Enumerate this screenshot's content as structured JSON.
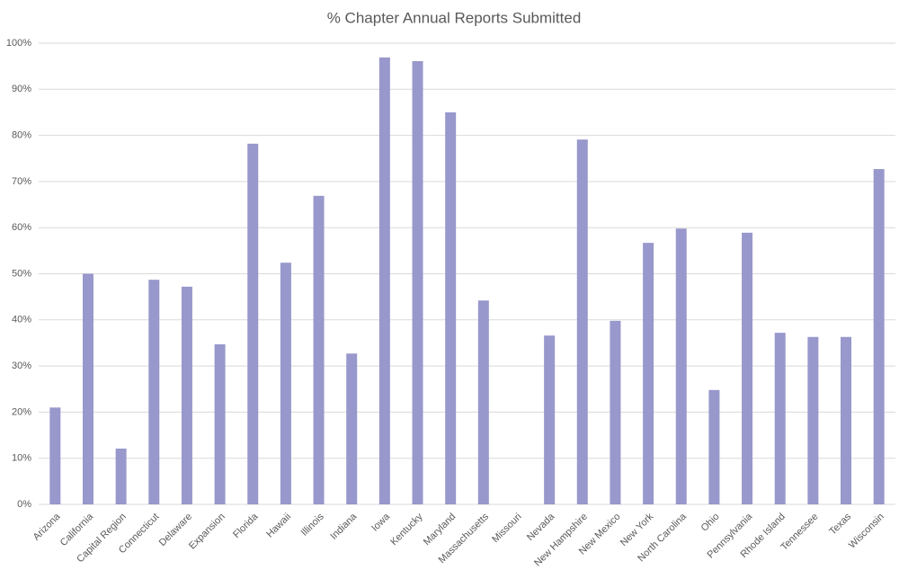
{
  "chart_data": {
    "type": "bar",
    "title": "% Chapter Annual Reports Submitted",
    "categories": [
      "Arizona",
      "California",
      "Capital Region",
      "Connecticut",
      "Delaware",
      "Expansion",
      "Florida",
      "Hawaii",
      "Illinois",
      "Indiana",
      "Iowa",
      "Kentucky",
      "Maryland",
      "Massachusetts",
      "Missouri",
      "Nevada",
      "New Hampshire",
      "New Mexico",
      "New York",
      "North Carolina",
      "Ohio",
      "Pennsylvania",
      "Rhode Island",
      "Tennessee",
      "Texas",
      "Wisconsin"
    ],
    "values": [
      21.0,
      50.0,
      12.1,
      48.7,
      47.2,
      34.7,
      78.2,
      52.4,
      66.9,
      32.7,
      96.9,
      96.1,
      85.0,
      44.2,
      0,
      36.6,
      79.1,
      39.8,
      56.7,
      59.8,
      24.8,
      58.9,
      37.2,
      36.3,
      36.3,
      72.7
    ],
    "color": "#9898cc",
    "ylim": [
      0,
      100
    ],
    "yticks": [
      {
        "value": 0,
        "label": "0%"
      },
      {
        "value": 10,
        "label": "10%"
      },
      {
        "value": 20,
        "label": "20%"
      },
      {
        "value": 30,
        "label": "30%"
      },
      {
        "value": 40,
        "label": "40%"
      },
      {
        "value": 50,
        "label": "50%"
      },
      {
        "value": 60,
        "label": "60%"
      },
      {
        "value": 70,
        "label": "70%"
      },
      {
        "value": 80,
        "label": "80%"
      },
      {
        "value": 90,
        "label": "90%"
      },
      {
        "value": 100,
        "label": "100%"
      }
    ],
    "grid": true
  }
}
